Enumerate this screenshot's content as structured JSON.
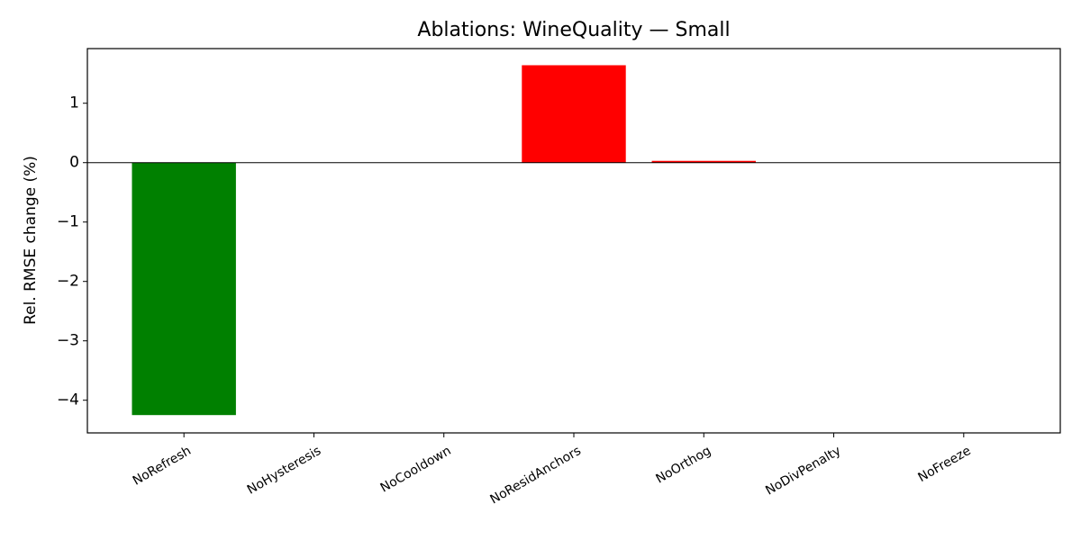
{
  "chart_data": {
    "type": "bar",
    "title": "Ablations: WineQuality — Small",
    "ylabel": "Rel. RMSE change (%)",
    "categories": [
      "NoRefresh",
      "NoHysteresis",
      "NoCooldown",
      "NoResidAnchors",
      "NoOrthog",
      "NoDivPenalty",
      "NoFreeze"
    ],
    "values": [
      -4.25,
      0,
      0,
      1.64,
      0.03,
      0,
      0
    ],
    "positive_color": "#ff0000",
    "negative_color": "#008000",
    "ylim": [
      -4.55,
      1.92
    ],
    "yticks": [
      {
        "value": -4,
        "label": "−4"
      },
      {
        "value": -3,
        "label": "−3"
      },
      {
        "value": -2,
        "label": "−2"
      },
      {
        "value": -1,
        "label": "−1"
      },
      0,
      1
    ],
    "zero_line": true
  }
}
